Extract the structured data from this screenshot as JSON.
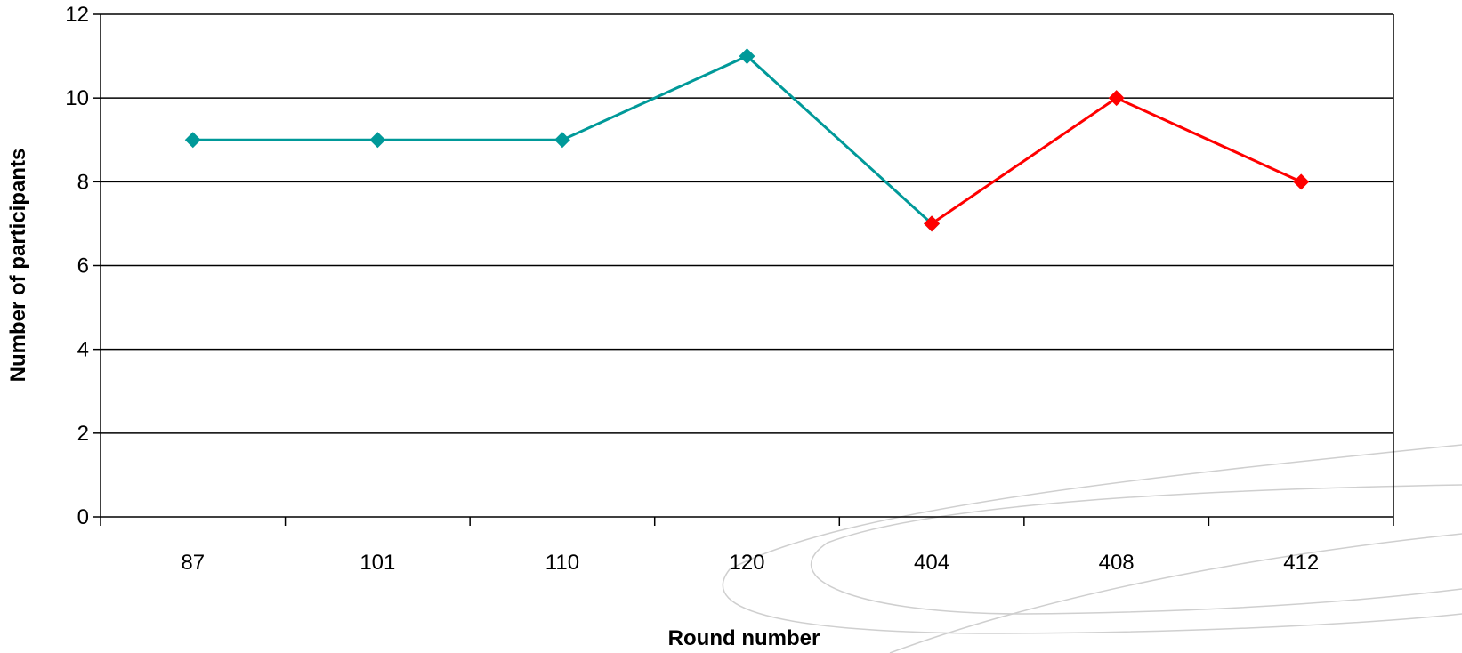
{
  "chart_data": {
    "type": "line",
    "categories": [
      "87",
      "101",
      "110",
      "120",
      "404",
      "408",
      "412"
    ],
    "series": [
      {
        "values": [
          9,
          9,
          9,
          11,
          7,
          null,
          null
        ],
        "color": "#009999"
      },
      {
        "values": [
          null,
          null,
          null,
          null,
          7,
          10,
          8
        ],
        "color": "#ff0000"
      }
    ],
    "xlabel": "Round number",
    "ylabel": "Number of participants",
    "ylim": [
      0,
      12
    ],
    "yticks": [
      0,
      2,
      4,
      6,
      8,
      10,
      12
    ],
    "grid": true,
    "legend": "none"
  }
}
